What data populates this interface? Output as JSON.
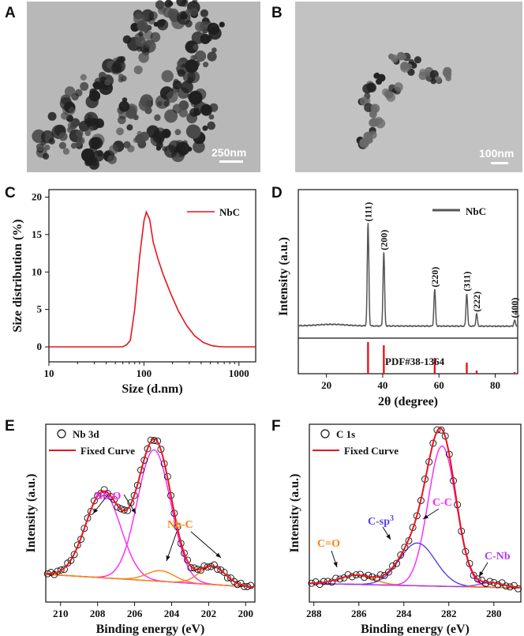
{
  "panels": {
    "A": {
      "label": "A",
      "scale_bar": "250nm"
    },
    "B": {
      "label": "B",
      "scale_bar": "100nm"
    }
  },
  "chart_data": [
    {
      "id": "C",
      "label": "C",
      "type": "line",
      "xscale": "log",
      "xlabel": "Size (d.nm)",
      "ylabel": "Size distribution (%)",
      "xlim": [
        10,
        1500
      ],
      "ylim": [
        -2,
        21
      ],
      "xticks": [
        10,
        100,
        1000
      ],
      "yticks": [
        0,
        5,
        10,
        15,
        20
      ],
      "legend": [
        "NbC"
      ],
      "colors": {
        "line": "#e8141c"
      },
      "series": [
        {
          "name": "NbC",
          "x": [
            10,
            50,
            60,
            66,
            72,
            80,
            90,
            100,
            106,
            115,
            125,
            140,
            160,
            190,
            230,
            280,
            340,
            420,
            520,
            600,
            700,
            1000,
            1500
          ],
          "y": [
            0,
            0,
            0,
            0.3,
            0.9,
            5.0,
            12.0,
            16.8,
            18.0,
            17.0,
            14.0,
            11.8,
            9.6,
            7.2,
            4.8,
            2.9,
            1.5,
            0.6,
            0.15,
            0.05,
            0,
            0,
            0
          ]
        }
      ]
    },
    {
      "id": "D",
      "label": "D",
      "type": "line",
      "xlabel": "2θ (degree)",
      "ylabel": "Intensity (a.u.)",
      "xlim": [
        10,
        88
      ],
      "xticks": [
        20,
        40,
        60,
        80
      ],
      "legend": [
        "NbC"
      ],
      "reference": "PDF#38-1364",
      "colors": {
        "line": "#555555",
        "ref": "#e8141c"
      },
      "peaks": [
        {
          "hkl": "(111)",
          "x": 34.8,
          "h": 1.0
        },
        {
          "hkl": "(200)",
          "x": 40.4,
          "h": 0.72
        },
        {
          "hkl": "(220)",
          "x": 58.5,
          "h": 0.36
        },
        {
          "hkl": "(311)",
          "x": 69.9,
          "h": 0.32
        },
        {
          "hkl": "(222)",
          "x": 73.4,
          "h": 0.12
        },
        {
          "hkl": "(400)",
          "x": 86.9,
          "h": 0.06
        }
      ],
      "ref_lines": [
        {
          "x": 34.8,
          "h": 1.0
        },
        {
          "x": 40.4,
          "h": 0.9
        },
        {
          "x": 58.5,
          "h": 0.5
        },
        {
          "x": 69.9,
          "h": 0.35
        },
        {
          "x": 73.4,
          "h": 0.1
        },
        {
          "x": 86.9,
          "h": 0.05
        }
      ]
    },
    {
      "id": "E",
      "label": "E",
      "type": "scatter+line",
      "reversed_x": true,
      "xlabel": "Binding energy (eV)",
      "ylabel": "Intensity (a.u.)",
      "xlim": [
        210.8,
        199.5
      ],
      "xticks": [
        210,
        208,
        206,
        204,
        202,
        200
      ],
      "legend": [
        "Nb 3d",
        "Fixed Curve"
      ],
      "colors": {
        "data": "#111111",
        "fit": "#e8141c",
        "comp1": "#ff22ff",
        "comp2": "#ff7f0e",
        "bg": "#3b9be0"
      },
      "annotations": [
        {
          "text": "Nb-O",
          "color": "#ff22ff"
        },
        {
          "text": "Nb-C",
          "color": "#ff7f0e"
        }
      ],
      "background": {
        "start": 0.12,
        "end": 0.035
      },
      "components": [
        {
          "name": "Nb-O 3d3/2",
          "center": 207.7,
          "sigma": 0.95,
          "amp": 0.56,
          "color": "#ff22ff"
        },
        {
          "name": "Nb-O 3d5/2",
          "center": 204.95,
          "sigma": 0.9,
          "amp": 0.86,
          "color": "#ff22ff"
        },
        {
          "name": "Nb-C 3d3/2",
          "center": 204.6,
          "sigma": 0.75,
          "amp": 0.07,
          "color": "#ff7f0e"
        },
        {
          "name": "Nb-C 3d5/2",
          "center": 201.8,
          "sigma": 0.7,
          "amp": 0.12,
          "color": "#ff7f0e"
        }
      ]
    },
    {
      "id": "F",
      "label": "F",
      "type": "scatter+line",
      "reversed_x": true,
      "xlabel": "Binding energy (eV)",
      "ylabel": "Intensity (a.u.)",
      "xlim": [
        288.2,
        278.8
      ],
      "xticks": [
        288,
        286,
        284,
        282,
        280
      ],
      "legend": [
        "C 1s",
        "Fixed Curve"
      ],
      "colors": {
        "data": "#111111",
        "fit": "#e8141c",
        "bg": "#3b9be0"
      },
      "annotations": [
        {
          "text": "C-C",
          "color": "#ff22ff"
        },
        {
          "text": "C-sp",
          "sup": "3",
          "color": "#5b3de8"
        },
        {
          "text": "C=O",
          "color": "#ff7f0e"
        },
        {
          "text": "C-Nb",
          "color": "#b23be8"
        }
      ],
      "background": {
        "start": 0.06,
        "end": 0.03
      },
      "components": [
        {
          "name": "C-C",
          "center": 282.3,
          "sigma": 0.62,
          "amp": 0.92,
          "color": "#ff22ff"
        },
        {
          "name": "C-sp3",
          "center": 283.4,
          "sigma": 0.8,
          "amp": 0.28,
          "color": "#5b3de8"
        },
        {
          "name": "C=O",
          "center": 286.1,
          "sigma": 0.75,
          "amp": 0.06,
          "color": "#ff7f0e"
        },
        {
          "name": "C-Nb",
          "center": 280.1,
          "sigma": 0.55,
          "amp": 0.03,
          "color": "#b23be8"
        }
      ]
    }
  ]
}
